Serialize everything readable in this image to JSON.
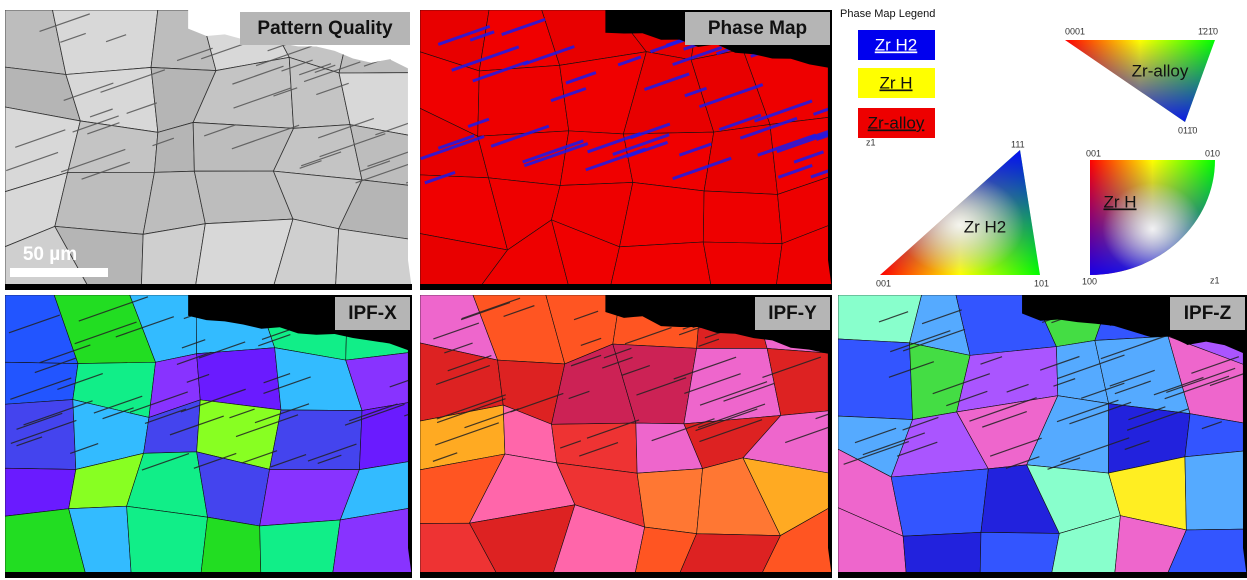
{
  "panels": [
    {
      "label": "Pattern Quality",
      "scale_bar": "50 µm"
    },
    {
      "label": "Phase Map"
    },
    {
      "label": "IPF-X"
    },
    {
      "label": "IPF-Y"
    },
    {
      "label": "IPF-Z"
    }
  ],
  "legend": {
    "title": "Phase Map Legend",
    "entries": [
      "Zr H2",
      "Zr H",
      "Zr-alloy"
    ],
    "axis": "z1"
  },
  "ipf_keys": [
    {
      "name": "Zr-alloy",
      "corners": [
        "0001",
        "1̄21̄0",
        "011̄0"
      ]
    },
    {
      "name": "Zr H2",
      "corners": [
        "111",
        "001",
        "101"
      ]
    },
    {
      "name": "Zr H",
      "corners": [
        "001",
        "010",
        "100"
      ],
      "axis": "z1"
    }
  ]
}
